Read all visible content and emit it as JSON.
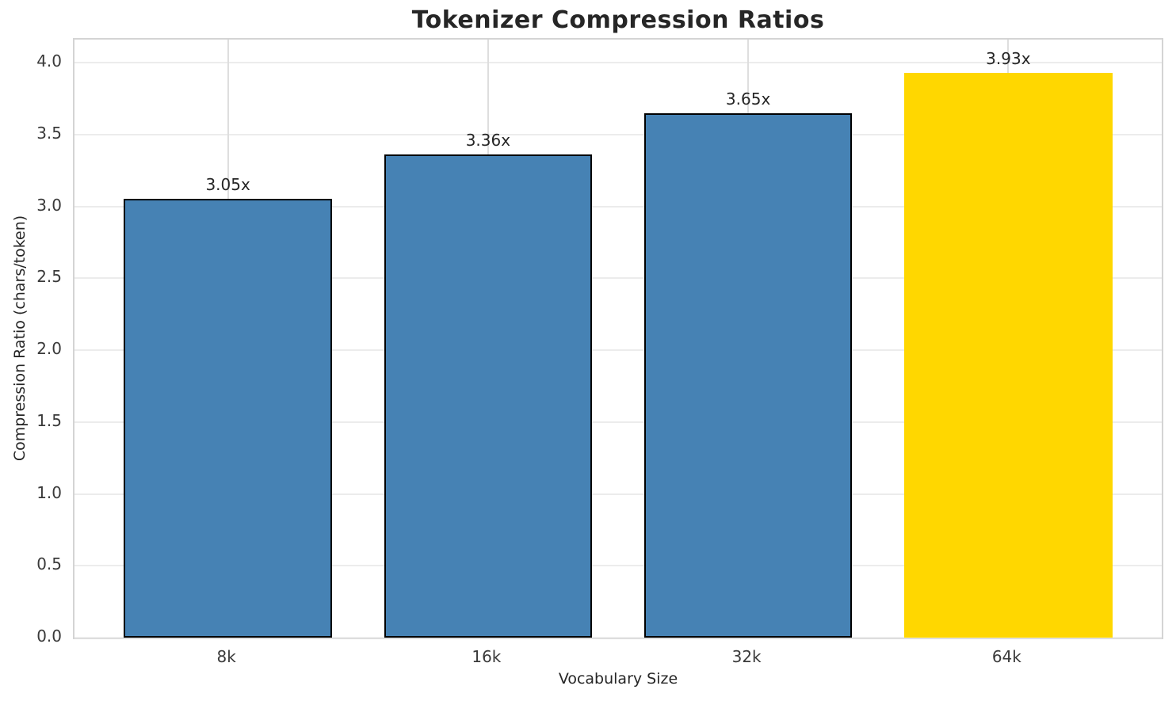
{
  "chart_data": {
    "type": "bar",
    "title": "Tokenizer Compression Ratios",
    "xlabel": "Vocabulary Size",
    "ylabel": "Compression Ratio (chars/token)",
    "categories": [
      "8k",
      "16k",
      "32k",
      "64k"
    ],
    "values": [
      3.05,
      3.36,
      3.65,
      3.93
    ],
    "bar_labels": [
      "3.05x",
      "3.36x",
      "3.65x",
      "3.93x"
    ],
    "bar_colors": [
      "#4682B4",
      "#4682B4",
      "#4682B4",
      "#FFD700"
    ],
    "bar_edge_colors": [
      "#000000",
      "#000000",
      "#000000",
      "none"
    ],
    "bar_width_fraction": 0.8,
    "xlim": [
      -0.59,
      3.59
    ],
    "ylim": [
      0,
      4.16
    ],
    "yticks": [
      0.0,
      0.5,
      1.0,
      1.5,
      2.0,
      2.5,
      3.0,
      3.5,
      4.0
    ],
    "ytick_labels": [
      "0.0",
      "0.5",
      "1.0",
      "1.5",
      "2.0",
      "2.5",
      "3.0",
      "3.5",
      "4.0"
    ],
    "grid": true,
    "legend": null
  },
  "colors": {
    "highlight_bar": "#FFD700",
    "default_bar": "#4682B4",
    "bar_edge": "#000000",
    "grid_h": "#ececec",
    "grid_v": "#dedede",
    "spine": "#d4d4d4",
    "text": "#262626"
  }
}
